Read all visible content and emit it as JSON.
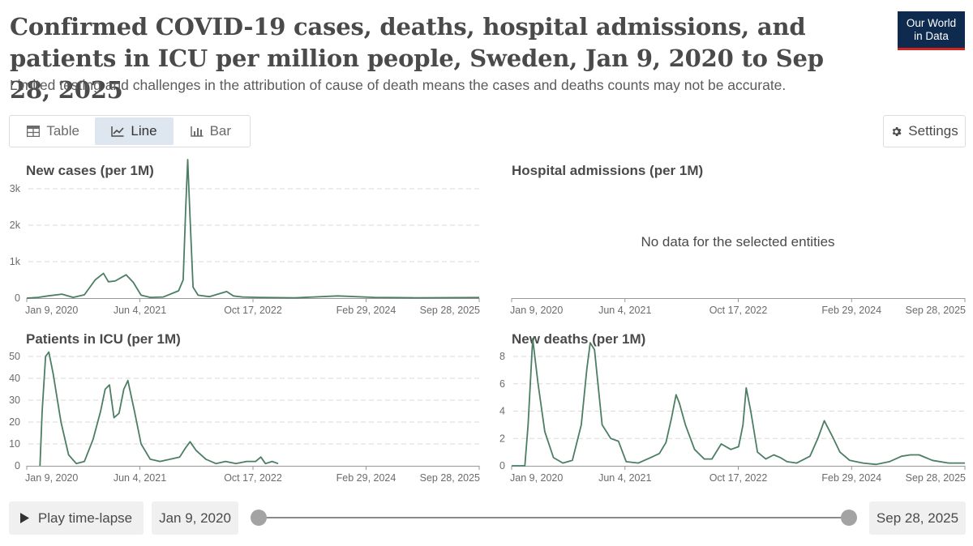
{
  "header": {
    "title": "Confirmed COVID-19 cases, deaths, hospital admissions, and patients in ICU per million people, Sweden, Jan 9, 2020 to Sep 28, 2025",
    "subtitle": "Limited testing and challenges in the attribution of cause of death means the cases and deaths counts may not be accurate.",
    "logo_line1": "Our World",
    "logo_line2": "in Data"
  },
  "tabs": [
    {
      "label": "Table",
      "icon": "table-icon",
      "active": false
    },
    {
      "label": "Line",
      "icon": "line-chart-icon",
      "active": true
    },
    {
      "label": "Bar",
      "icon": "bar-chart-icon",
      "active": false
    }
  ],
  "settings_label": "Settings",
  "no_data_message": "No data for the selected entities",
  "footer": {
    "play_label": "Play time-lapse",
    "start_date": "Jan 9, 2020",
    "end_date": "Sep 28, 2025"
  },
  "colors": {
    "series": "#4c7e64",
    "grid": "#dadada",
    "logo_bg": "#0e2a4f",
    "logo_accent": "#ce261e"
  },
  "chart_data": [
    {
      "type": "line",
      "title": "New cases (per 1M)",
      "xlabel": "",
      "ylabel": "",
      "x_ticks": [
        "Jan 9, 2020",
        "Jun 4, 2021",
        "Oct 17, 2022",
        "Feb 29, 2024",
        "Sep 28, 2025"
      ],
      "xlim": [
        "2020-01-09",
        "2025-09-28"
      ],
      "y_ticks": [
        {
          "v": 0,
          "label": "0"
        },
        {
          "v": 1000,
          "label": "1k"
        },
        {
          "v": 2000,
          "label": "2k"
        },
        {
          "v": 3000,
          "label": "3k"
        }
      ],
      "ylim": [
        0,
        3800
      ],
      "series": [
        {
          "name": "Sweden",
          "x": [
            "2020-01-09",
            "2020-03-01",
            "2020-04-15",
            "2020-06-20",
            "2020-08-10",
            "2020-10-01",
            "2020-11-20",
            "2020-12-28",
            "2021-01-20",
            "2021-02-20",
            "2021-04-12",
            "2021-05-15",
            "2021-06-20",
            "2021-08-01",
            "2021-10-01",
            "2021-12-10",
            "2021-12-31",
            "2022-01-12",
            "2022-01-21",
            "2022-02-01",
            "2022-02-15",
            "2022-03-10",
            "2022-05-01",
            "2022-07-20",
            "2022-08-20",
            "2022-10-01",
            "2022-12-15",
            "2023-06-01",
            "2023-12-15",
            "2024-06-01",
            "2024-12-01",
            "2025-09-28"
          ],
          "values": [
            0,
            20,
            60,
            110,
            20,
            90,
            500,
            680,
            450,
            470,
            640,
            430,
            80,
            20,
            30,
            200,
            500,
            2500,
            3800,
            2200,
            300,
            80,
            40,
            180,
            60,
            30,
            20,
            10,
            60,
            20,
            10,
            15
          ]
        }
      ]
    },
    {
      "type": "line",
      "title": "Hospital admissions (per 1M)",
      "x_ticks": [
        "Jan 9, 2020",
        "Jun 4, 2021",
        "Oct 17, 2022",
        "Feb 29, 2024",
        "Sep 28, 2025"
      ],
      "series": []
    },
    {
      "type": "line",
      "title": "Patients in ICU (per 1M)",
      "xlabel": "",
      "ylabel": "",
      "x_ticks": [
        "Jan 9, 2020",
        "Jun 4, 2021",
        "Oct 17, 2022",
        "Feb 29, 2024",
        "Sep 28, 2025"
      ],
      "xlim": [
        "2020-01-09",
        "2025-09-28"
      ],
      "y_ticks": [
        {
          "v": 0,
          "label": "0"
        },
        {
          "v": 10,
          "label": "10"
        },
        {
          "v": 20,
          "label": "20"
        },
        {
          "v": 30,
          "label": "30"
        },
        {
          "v": 40,
          "label": "40"
        },
        {
          "v": 50,
          "label": "50"
        }
      ],
      "ylim": [
        0,
        55
      ],
      "series": [
        {
          "name": "Sweden",
          "x": [
            "2020-03-10",
            "2020-03-20",
            "2020-04-05",
            "2020-04-20",
            "2020-05-10",
            "2020-06-15",
            "2020-07-20",
            "2020-08-25",
            "2020-10-01",
            "2020-11-10",
            "2020-12-15",
            "2021-01-05",
            "2021-01-25",
            "2021-02-15",
            "2021-03-10",
            "2021-04-01",
            "2021-04-20",
            "2021-05-20",
            "2021-06-20",
            "2021-08-01",
            "2021-09-15",
            "2021-11-01",
            "2021-12-15",
            "2022-01-10",
            "2022-02-01",
            "2022-03-01",
            "2022-04-15",
            "2022-06-01",
            "2022-07-15",
            "2022-09-01",
            "2022-10-20",
            "2022-12-01",
            "2022-12-25",
            "2023-01-15",
            "2023-02-15",
            "2023-03-15"
          ],
          "values": [
            0,
            25,
            50,
            52,
            42,
            20,
            5,
            1,
            2,
            12,
            25,
            35,
            37,
            22,
            24,
            35,
            39,
            25,
            10,
            3,
            2,
            3,
            4,
            8,
            11,
            7,
            3,
            1,
            2,
            1,
            2,
            2,
            4,
            1,
            2,
            1
          ]
        }
      ]
    },
    {
      "type": "line",
      "title": "New deaths (per 1M)",
      "xlabel": "",
      "ylabel": "",
      "x_ticks": [
        "Jan 9, 2020",
        "Jun 4, 2021",
        "Oct 17, 2022",
        "Feb 29, 2024",
        "Sep 28, 2025"
      ],
      "xlim": [
        "2020-01-09",
        "2025-09-28"
      ],
      "y_ticks": [
        {
          "v": 0,
          "label": "0"
        },
        {
          "v": 2,
          "label": "2"
        },
        {
          "v": 4,
          "label": "4"
        },
        {
          "v": 6,
          "label": "6"
        },
        {
          "v": 8,
          "label": "8"
        }
      ],
      "ylim": [
        0,
        9.1
      ],
      "series": [
        {
          "name": "Sweden",
          "x": [
            "2020-01-09",
            "2020-03-10",
            "2020-03-25",
            "2020-04-15",
            "2020-05-10",
            "2020-06-10",
            "2020-07-20",
            "2020-09-01",
            "2020-10-15",
            "2020-11-25",
            "2020-12-20",
            "2021-01-05",
            "2021-01-25",
            "2021-03-01",
            "2021-04-10",
            "2021-05-15",
            "2021-06-20",
            "2021-08-15",
            "2021-10-10",
            "2021-11-20",
            "2021-12-20",
            "2022-01-15",
            "2022-02-05",
            "2022-02-20",
            "2022-03-20",
            "2022-05-01",
            "2022-06-15",
            "2022-07-20",
            "2022-09-01",
            "2022-10-15",
            "2022-11-20",
            "2022-12-10",
            "2022-12-25",
            "2023-01-15",
            "2023-02-15",
            "2023-03-25",
            "2023-05-01",
            "2023-06-01",
            "2023-07-01",
            "2023-08-15",
            "2023-10-15",
            "2023-11-20",
            "2023-12-20",
            "2024-01-05",
            "2024-01-25",
            "2024-03-01",
            "2024-04-15",
            "2024-06-15",
            "2024-08-15",
            "2024-10-15",
            "2024-12-10",
            "2025-01-20",
            "2025-03-01",
            "2025-05-01",
            "2025-07-15",
            "2025-09-28"
          ],
          "values": [
            0,
            0,
            3,
            9.3,
            6,
            2.5,
            0.6,
            0.2,
            0.4,
            3,
            7,
            9,
            8.5,
            3,
            2,
            1.8,
            0.3,
            0.2,
            0.6,
            0.9,
            1.7,
            3.5,
            5.2,
            4.6,
            3,
            1.2,
            0.5,
            0.5,
            1.6,
            1.2,
            1.4,
            3,
            5.7,
            4,
            1,
            0.5,
            0.8,
            0.6,
            0.3,
            0.2,
            0.7,
            2,
            3.3,
            2.8,
            2.2,
            1,
            0.4,
            0.2,
            0.1,
            0.3,
            0.7,
            0.8,
            0.8,
            0.4,
            0.2,
            0.2
          ]
        }
      ]
    }
  ]
}
